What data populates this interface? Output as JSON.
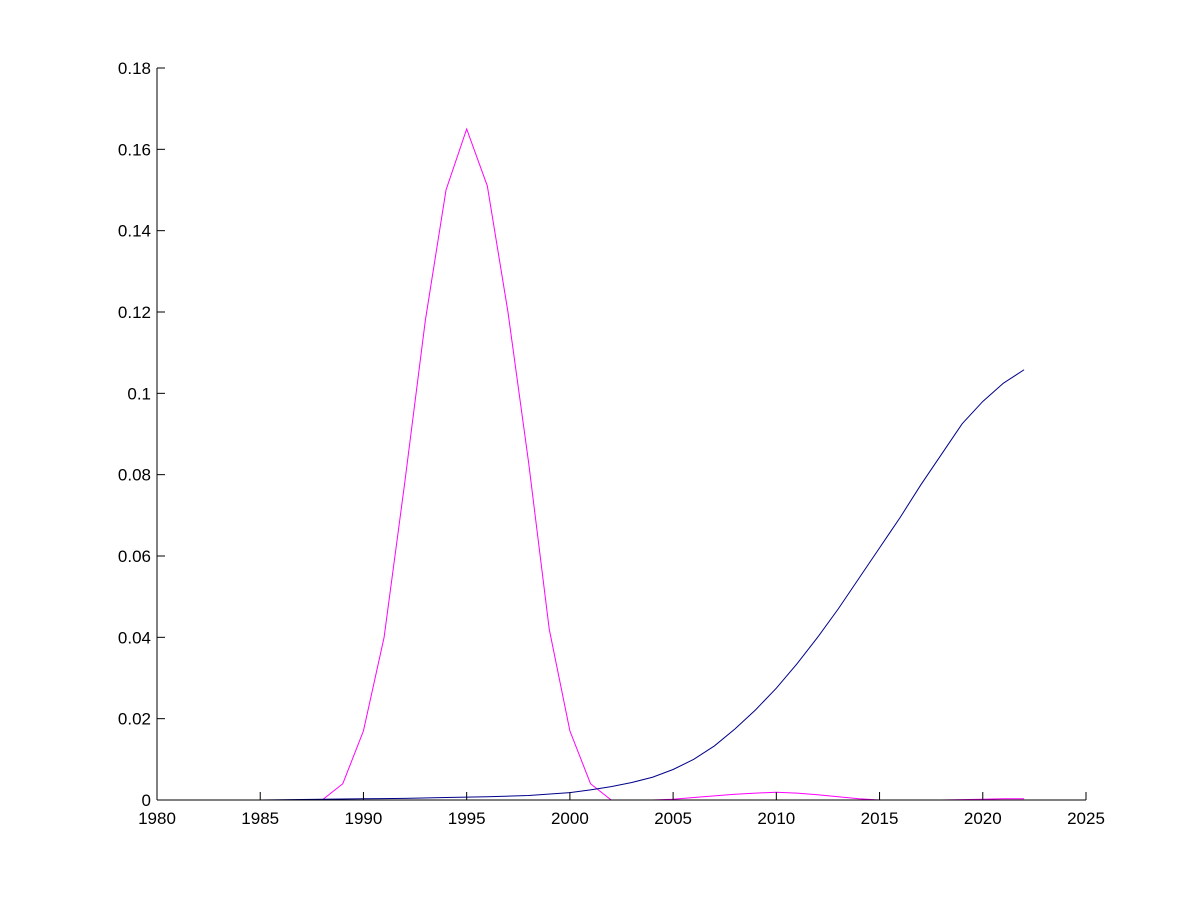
{
  "chart_data": {
    "type": "line",
    "title": "",
    "xlabel": "",
    "ylabel": "",
    "xlim": [
      1980,
      2025
    ],
    "ylim": [
      0,
      0.18
    ],
    "xticks": [
      1980,
      1985,
      1990,
      1995,
      2000,
      2005,
      2010,
      2015,
      2020,
      2025
    ],
    "xtick_labels": [
      "1980",
      "1985",
      "1990",
      "1995",
      "2000",
      "2005",
      "2010",
      "2015",
      "2020",
      "2025"
    ],
    "yticks": [
      0,
      0.02,
      0.04,
      0.06,
      0.08,
      0.1,
      0.12,
      0.14,
      0.16,
      0.18
    ],
    "ytick_labels": [
      "0",
      "0.02",
      "0.04",
      "0.06",
      "0.08",
      "0.1",
      "0.12",
      "0.14",
      "0.16",
      "0.18"
    ],
    "grid": false,
    "legend": "none",
    "series": [
      {
        "color": "#ff00ff",
        "x": [
          1980,
          1981,
          1982,
          1983,
          1984,
          1985,
          1986,
          1987,
          1988,
          1989,
          1990,
          1991,
          1992,
          1993,
          1994,
          1995,
          1996,
          1997,
          1998,
          1999,
          2000,
          2001,
          2002,
          2003,
          2004,
          2005,
          2006,
          2007,
          2008,
          2009,
          2010,
          2011,
          2012,
          2013,
          2014,
          2015,
          2016,
          2017,
          2018,
          2019,
          2020,
          2021,
          2022
        ],
        "y": [
          0,
          0,
          0,
          0,
          0,
          0,
          0,
          0,
          0,
          0.004,
          0.017,
          0.04,
          0.078,
          0.118,
          0.15,
          0.165,
          0.151,
          0.12,
          0.083,
          0.042,
          0.017,
          0.004,
          0,
          0,
          0,
          0.0002,
          0.0006,
          0.001,
          0.0014,
          0.0017,
          0.0019,
          0.0017,
          0.0013,
          0.0008,
          0.0003,
          0,
          0,
          0,
          0,
          0.0001,
          0.0002,
          0.0003,
          0.0003
        ]
      },
      {
        "color": "#00008b",
        "x": [
          1980,
          1985,
          1988,
          1990,
          1992,
          1994,
          1996,
          1998,
          2000,
          2001,
          2002,
          2003,
          2004,
          2005,
          2006,
          2007,
          2008,
          2009,
          2010,
          2011,
          2012,
          2013,
          2014,
          2015,
          2016,
          2017,
          2018,
          2019,
          2020,
          2021,
          2022
        ],
        "y": [
          0,
          0,
          0.0002,
          0.0003,
          0.0004,
          0.0006,
          0.0008,
          0.0011,
          0.0018,
          0.0025,
          0.0033,
          0.0043,
          0.0056,
          0.0075,
          0.01,
          0.0133,
          0.0175,
          0.0222,
          0.0275,
          0.0335,
          0.04,
          0.047,
          0.0545,
          0.062,
          0.0695,
          0.0775,
          0.085,
          0.0925,
          0.098,
          0.1025,
          0.1058
        ]
      }
    ]
  }
}
